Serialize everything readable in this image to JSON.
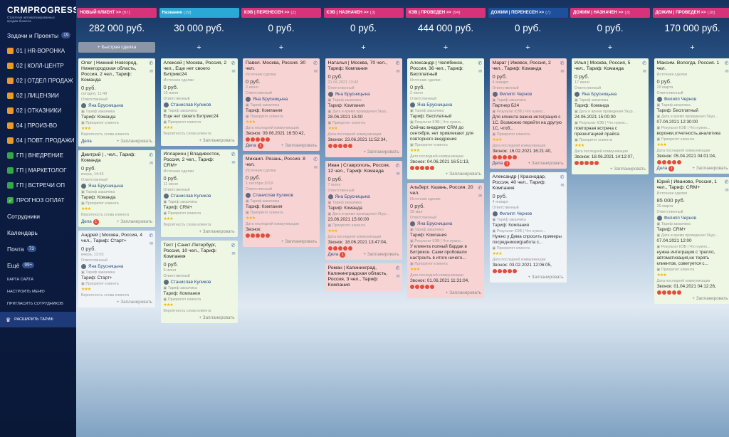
{
  "sidebar": {
    "logo": "CRMPROGRESS",
    "tagline": "Стратегия автоматизированных продаж бизнеса",
    "items": [
      {
        "label": "Задачи и Проекты",
        "count": "19",
        "color": ""
      },
      {
        "label": "01 | HR-ВОРОНКА",
        "count": "",
        "color": "#e89a2a"
      },
      {
        "label": "02 | КОЛЛ-ЦЕНТР",
        "count": "",
        "color": "#e89a2a"
      },
      {
        "label": "02 | ОТДЕЛ ПРОДАЖ",
        "count": "",
        "color": "#e89a2a"
      },
      {
        "label": "02 | ЛИЦЕНЗИИ",
        "count": "",
        "color": "#e89a2a"
      },
      {
        "label": "02 | ОТКАЗНИКИ",
        "count": "",
        "color": "#e89a2a"
      },
      {
        "label": "04 | ПРОИЗ-ВО",
        "count": "",
        "color": "#e89a2a"
      },
      {
        "label": "04 | ПОВТ. ПРОДАЖИ",
        "count": "",
        "color": "#e89a2a"
      },
      {
        "label": "ГП | ВНЕДРЕНИЕ",
        "count": "",
        "color": "#37a84a"
      },
      {
        "label": "ГП | МАРКЕТОЛОГ",
        "count": "",
        "color": "#37a84a"
      },
      {
        "label": "ГП | ВСТРЕЧИ ОП",
        "count": "",
        "color": "#37a84a"
      },
      {
        "label": "ПРОГНОЗ ОПЛАТ",
        "count": "",
        "color": "#37a84a"
      }
    ],
    "links": [
      {
        "label": "Сотрудники",
        "count": ""
      },
      {
        "label": "Календарь",
        "count": ""
      },
      {
        "label": "Почта",
        "count": "73"
      },
      {
        "label": "Ещё",
        "count": "99+"
      }
    ],
    "small": [
      "КАРТА САЙТА",
      "НАСТРОИТЬ МЕНЮ",
      "ПРИГЛАСИТЬ СОТРУДНИКОВ"
    ],
    "tariff": "РАСШИРИТЬ ТАРИФ"
  },
  "labels": {
    "responsible": "Ответственный",
    "tariff_client": "Тариф заказчика",
    "priority": "Приоритет клиента",
    "probability": "Вероятность слова клиента",
    "deals": "Дела",
    "plan": "+ Запланировать",
    "quick_deal": "+ Быстрая сделка",
    "kev_result": "Результат КЭВ | Что нужно...",
    "kev_date": "Дата и время проведения Skyp...",
    "last_comm": "Дата последней коммуникации",
    "source": "Источник сделки"
  },
  "columns": [
    {
      "title": "НОВЫЙ КЛИЕНТ >>",
      "count": "(67)",
      "sum": "282 000 руб.",
      "color": "#d6337a",
      "cards": [
        {
          "title": "Олег | Нижний Новгород, Нижегородская область, Россия, 2 чел., Тариф: Команда",
          "price": "0 руб.",
          "date": "сегодня, 11:48",
          "person": "Яна Брусницына",
          "tariff": "Тариф: Команда",
          "deals": true,
          "color": "green"
        },
        {
          "title": "Дмитрий | , чел., Тариф: Команда",
          "price": "0 руб.",
          "date": "вчера, 14:43",
          "person": "Яна Брусницына",
          "tariff": "Тариф: Команда",
          "deals": true,
          "badge": "1",
          "color": "green"
        },
        {
          "title": "Андрей | Москва, Россия, 4 чел., Тариф: Старт+",
          "price": "0 руб.",
          "date": "вчера, 12:03",
          "person": "Яна Брусницына",
          "tariff": "Тариф: Старт+",
          "deals": false,
          "color": "white"
        }
      ]
    },
    {
      "title": "Название",
      "count": "(19)",
      "sum": "30 000 руб.",
      "color": "#2aa8d6",
      "cards": [
        {
          "title": "Алексей | Москва, Россия, 2 чел., Еще нет своего Битрикс24",
          "source": "Источник сделки",
          "price": "0 руб.",
          "date": "16 июня",
          "person": "Станислав Куликов",
          "tariff": "Еще нет своего Битрикс24",
          "deals": false,
          "color": "green"
        },
        {
          "title": "Илларион | Владивосток, Россия, 2 чел., Тариф: CRM+",
          "source": "Источник сделки",
          "price": "0 руб.",
          "date": "11 июня",
          "person": "Станислав Куликов",
          "tariff": "Тариф: CRM+",
          "deals": false,
          "color": "green"
        },
        {
          "title": "Тест | Санкт-Петербург, Россия, 10 чел., Тариф: Компания",
          "price": "0 руб.",
          "date": "9 июня",
          "person": "Станислав Куликов",
          "tariff": "Тариф: Компания",
          "deals": false,
          "color": "green"
        }
      ]
    },
    {
      "title": "КЭВ | ПЕРЕНЕСЕН >>",
      "count": "(2)",
      "sum": "0 руб.",
      "color": "#d6337a",
      "cards": [
        {
          "title": "Павел. Москва, Россия. 30 чел.",
          "source": "Источник сделки",
          "price": "0 руб.",
          "date": "2 июня",
          "person": "Яна Брусницына",
          "tariff": "Тариф: Компания",
          "comm": "Звонок: 09.06.2021 16:50:42,",
          "deals": true,
          "badge": "1",
          "color": "red"
        },
        {
          "title": "Михаил. Рязань, Россия. 8 чел.",
          "source": "Источник сделки",
          "price": "0 руб.",
          "date": "1 октября 2019",
          "person": "Станислав Куликов",
          "tariff": "Тариф: Компания",
          "comm": "Звонок:",
          "deals": false,
          "color": "red"
        }
      ]
    },
    {
      "title": "КЭВ | НАЗНАЧЕН >>",
      "count": "(3)",
      "sum": "0 руб.",
      "color": "#d6337a",
      "cards": [
        {
          "title": "Наталья | Москва, 70 чел., Тариф: Компания",
          "price": "0 руб.",
          "date": "21.06.2021 13:42",
          "person": "Яна Брусницына",
          "tariff": "Тариф: Компания",
          "kevdate": "28.06.2021 15:00",
          "comm": "Звонок: 23.06.2021 11:52:34,",
          "deals": false,
          "color": "red"
        },
        {
          "title": "Иван | Ставрополь, Россия, 12 чел., Тариф: Команда",
          "price": "0 руб.",
          "date": "7 июня",
          "person": "Яна Брусницына",
          "tariff": "Тариф: Команда",
          "kevdate": "23.06.2021 15:00:00",
          "comm": "Звонок: 18.06.2021 13:47:04,",
          "deals": true,
          "badge": "1",
          "color": "red"
        },
        {
          "title": "Роман | Калининград, Калининградская область, Россия, 3 чел., Тариф: Компания",
          "price": "",
          "date": "",
          "person": "",
          "tariff": "",
          "deals": false,
          "color": "red"
        }
      ]
    },
    {
      "title": "КЭВ | ПРОВЕДЕН >>",
      "count": "(94)",
      "sum": "444 000 руб.",
      "color": "#d6337a",
      "cards": [
        {
          "title": "Александр | Челябинск, Россия, 36 чел., Тариф: Бесплатный",
          "source": "Источник сделки",
          "price": "0 руб.",
          "date": "2 июня",
          "person": "Яна Брусницына",
          "tariff": "Тариф: Бесплатный",
          "result": "Сейчас внедряет CRM до сентября, нет привлекают для повторного внедрения",
          "comm": "Звонок: 04.06.2021 16:51:13,",
          "deals": false,
          "color": "green"
        },
        {
          "title": "Альберт. Казань, Россия. 20 чел.",
          "source": "Источник сделки",
          "price": "0 руб.",
          "date": "28 мая",
          "person": "Яна Брусницына",
          "tariff": "Тариф: Компания",
          "result": "У клиента полный бардак в Битриксе. Сами пробовали настроить в итоге ничего...",
          "comm": "Звонок: 01.06.2021 11:31:04,",
          "deals": false,
          "color": "red"
        }
      ]
    },
    {
      "title": "ДОЖИМ | ПЕРЕНЕСЕН >>",
      "count": "(7)",
      "sum": "0 руб.",
      "color": "#1e4f9a",
      "cards": [
        {
          "title": "Марат | Ижевск, Россия, 2 чел., Тариф: Команда",
          "price": "0 руб.",
          "date": "4 января",
          "person": "Филипп Чернов",
          "tariff": "Партнер Б24",
          "result": "Для клиента важна интеграция с 1С. Возможно перейти на другую 1С, чтоб...",
          "comm": "Звонок: 16.02.2021 16:21:40,",
          "deals": true,
          "badge": "1",
          "color": "red"
        },
        {
          "title": "Александр | Краснодар, Россия, 40 чел., Тариф: Компания",
          "price": "0 руб.",
          "date": "4 января",
          "person": "Филипп Чернов",
          "tariff": "Тариф: Компания",
          "result": "Нужно у Дима спросить примеры посредником(работа с...",
          "comm": "Звонок: 03.02.2021 12:06:05,",
          "deals": false,
          "color": "white"
        }
      ]
    },
    {
      "title": "ДОЖИМ | НАЗНАЧЕН >>",
      "count": "(3)",
      "sum": "0 руб.",
      "color": "#d6337a",
      "cards": [
        {
          "title": "Илья | Москва, Россия, 5 чел., Тариф: Команда",
          "price": "0 руб.",
          "date": "17 июня",
          "person": "Яна Брусницына",
          "tariff": "Тариф: Команда",
          "kevdate": "24.06.2021 15:00:00",
          "result": "повторная встреча с презентацией прайса",
          "comm": "Звонок: 18.06.2021 14:12:07,",
          "deals": false,
          "color": "green"
        }
      ]
    },
    {
      "title": "ДОЖИМ | ПРОВЕДЕН >>",
      "count": "(18)",
      "sum": "170 000 руб.",
      "color": "#d6337a",
      "cards": [
        {
          "title": "Максим. Вологда, Россия. 1 чел.",
          "source": "Источник сделки",
          "price": "0 руб.",
          "date": "29 марта",
          "person": "Филипп Чернов",
          "tariff": "Тариф: Бесплатный",
          "kevdate": "07.04.2021 12:30:00",
          "result": "воронки,отчетность,аналитика",
          "comm": "Звонок: 05.04.2021 04:01:04,",
          "deals": true,
          "badge": "1",
          "color": "green"
        },
        {
          "title": "Юрий | Иваново, Россия, 1 чел., Тариф: CRM+",
          "source": "Источник сделки",
          "price": "85 000 руб.",
          "date": "29 марта",
          "person": "Филипп Чернов",
          "tariff": "Тариф: CRM+",
          "kevdate": "07.04.2021 12:00",
          "result": "нужна интеграция с трелло, автоматизация,не терять клиентов, советуется с...",
          "comm": "Звонок: 01.04.2021 04:12:26,",
          "deals": false,
          "color": "green"
        }
      ]
    }
  ]
}
